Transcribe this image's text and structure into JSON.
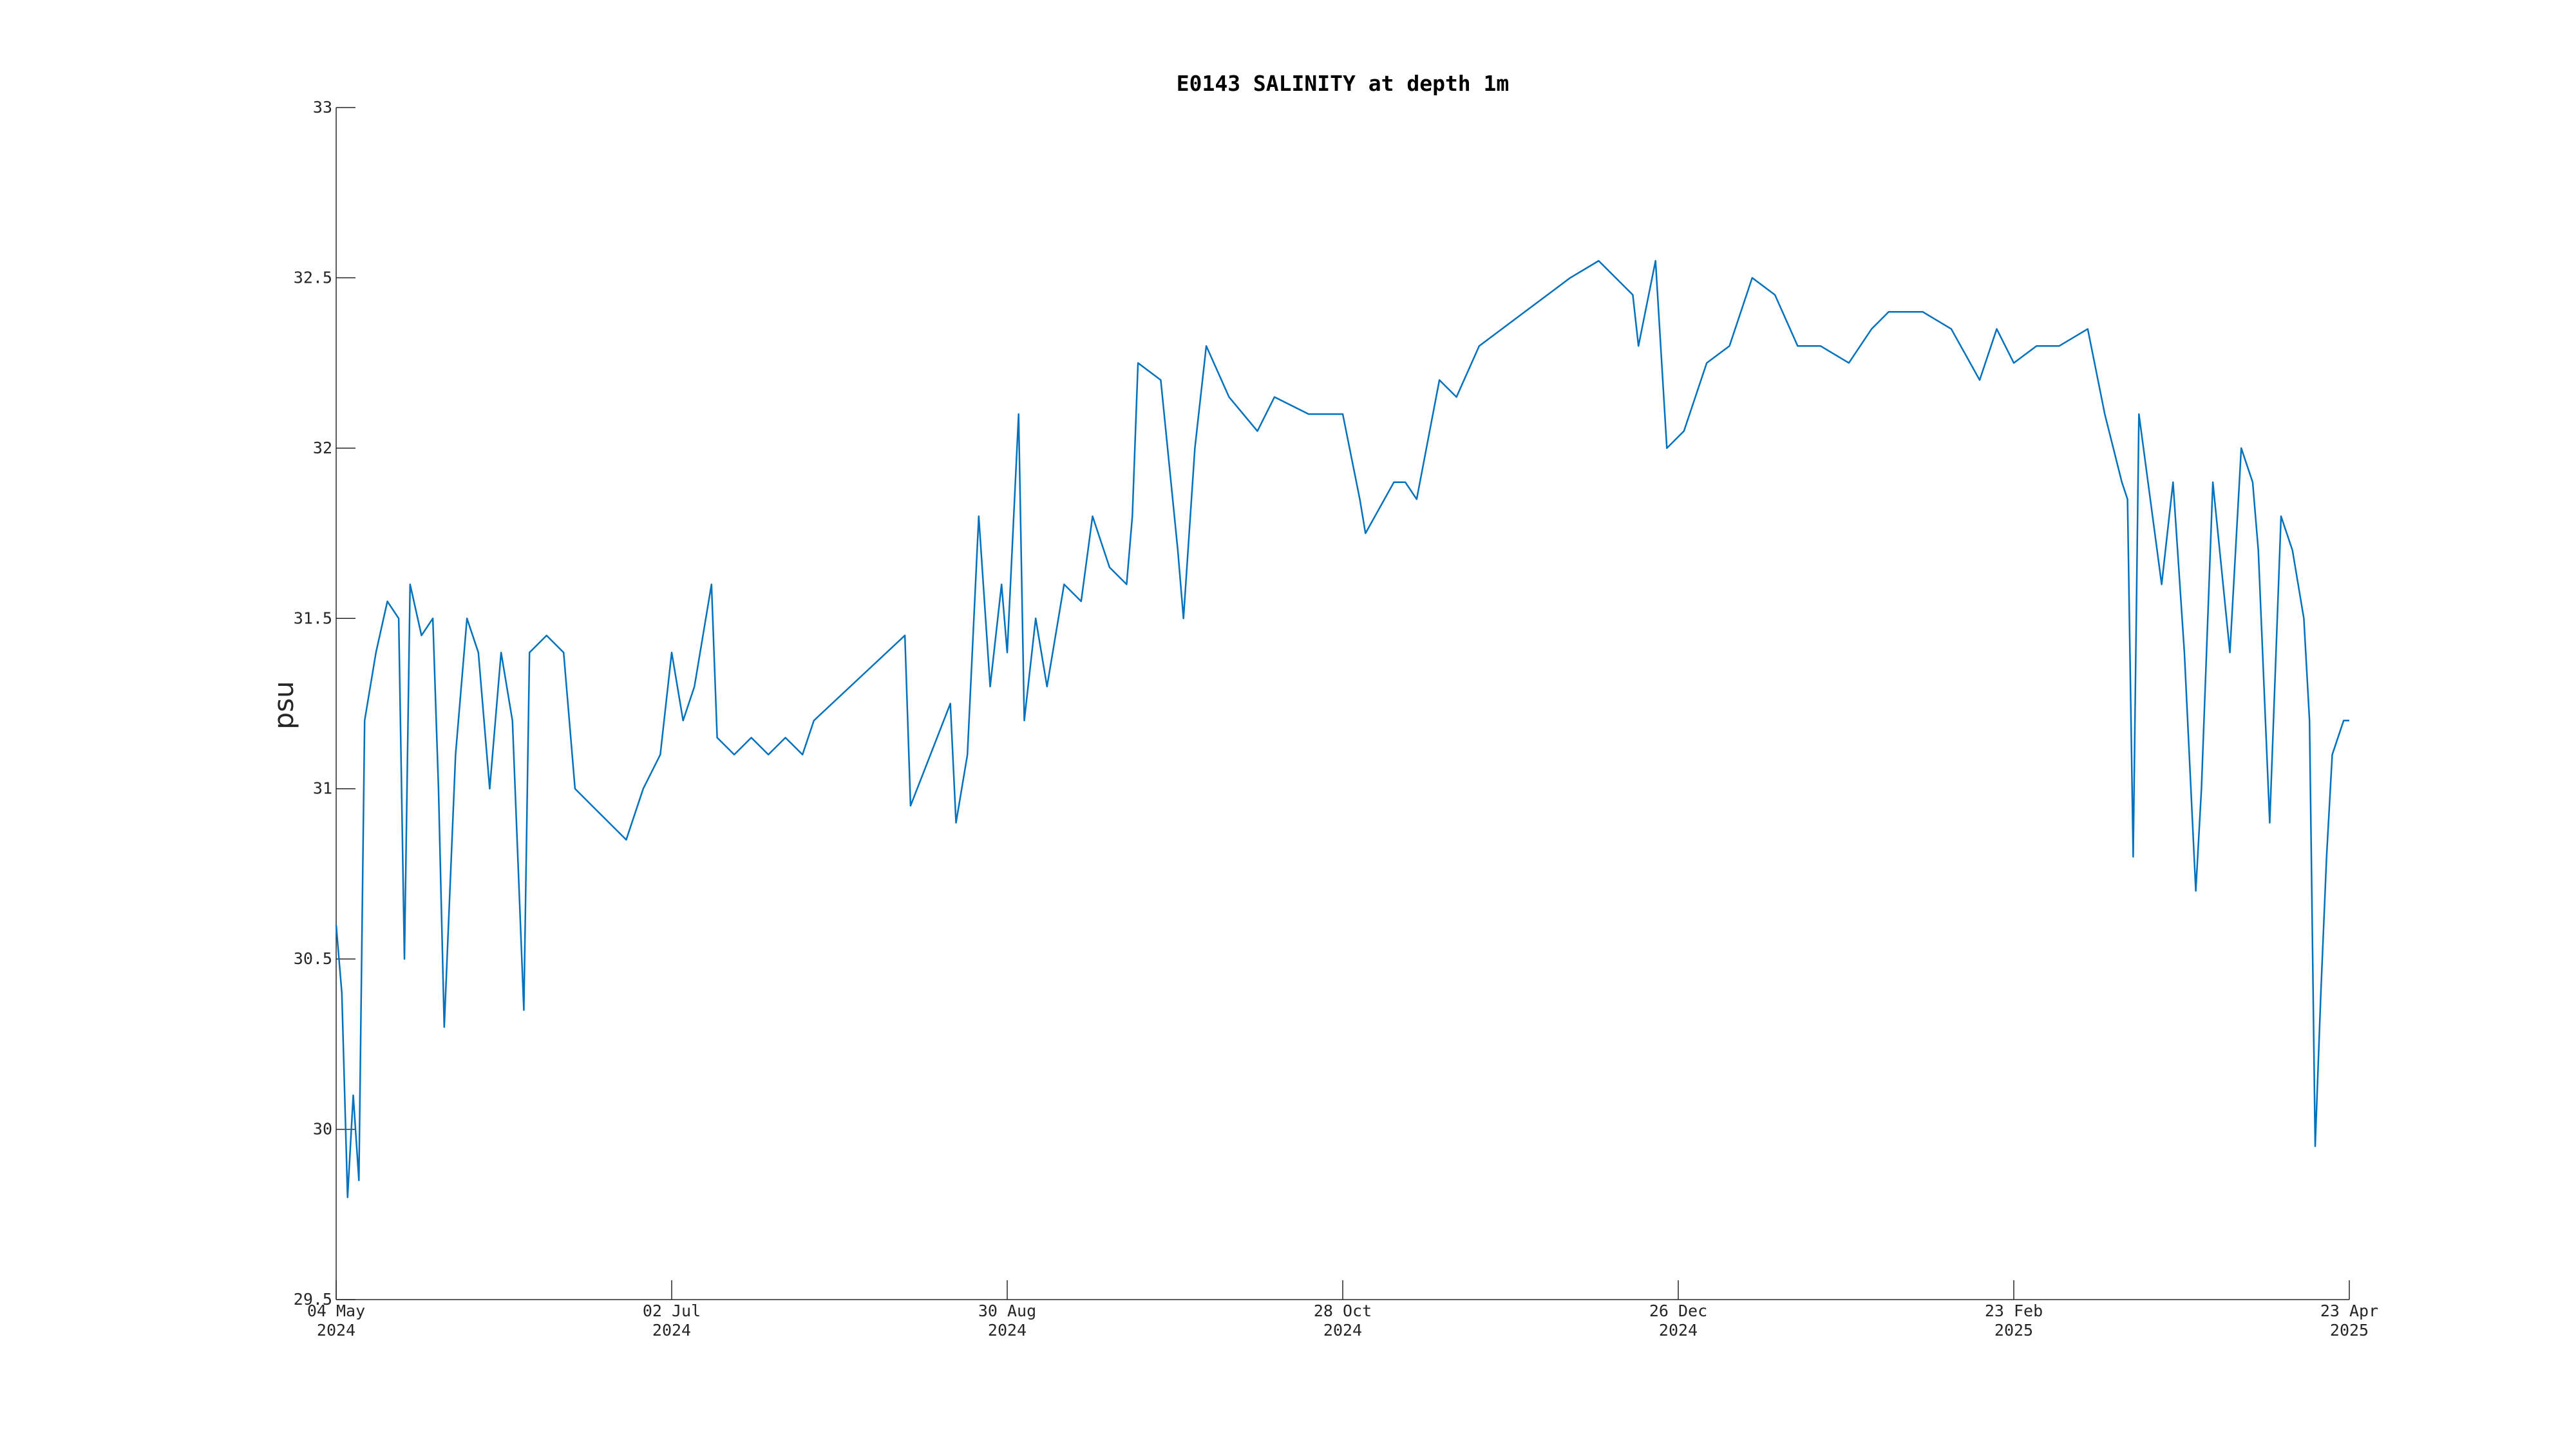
{
  "chart_data": {
    "type": "line",
    "title": "E0143 SALINITY at depth 1m",
    "y_label": "psu",
    "color": "#0072bd",
    "x": [
      "2024-05-04",
      "2024-05-05",
      "2024-05-06",
      "2024-05-07",
      "2024-05-08",
      "2024-05-09",
      "2024-05-11",
      "2024-05-13",
      "2024-05-15",
      "2024-05-16",
      "2024-05-17",
      "2024-05-19",
      "2024-05-21",
      "2024-05-22",
      "2024-05-23",
      "2024-05-25",
      "2024-05-27",
      "2024-05-29",
      "2024-05-31",
      "2024-06-02",
      "2024-06-04",
      "2024-06-06",
      "2024-06-07",
      "2024-06-10",
      "2024-06-13",
      "2024-06-15",
      "2024-06-18",
      "2024-06-21",
      "2024-06-24",
      "2024-06-27",
      "2024-06-30",
      "2024-07-02",
      "2024-07-04",
      "2024-07-06",
      "2024-07-09",
      "2024-07-10",
      "2024-07-13",
      "2024-07-16",
      "2024-07-19",
      "2024-07-22",
      "2024-07-25",
      "2024-07-27",
      "2024-08-12",
      "2024-08-13",
      "2024-08-20",
      "2024-08-21",
      "2024-08-23",
      "2024-08-25",
      "2024-08-27",
      "2024-08-29",
      "2024-08-30",
      "2024-09-01",
      "2024-09-02",
      "2024-09-04",
      "2024-09-06",
      "2024-09-09",
      "2024-09-12",
      "2024-09-14",
      "2024-09-17",
      "2024-09-20",
      "2024-09-21",
      "2024-09-22",
      "2024-09-26",
      "2024-09-29",
      "2024-09-30",
      "2024-10-02",
      "2024-10-04",
      "2024-10-08",
      "2024-10-13",
      "2024-10-16",
      "2024-10-22",
      "2024-10-28",
      "2024-10-31",
      "2024-11-01",
      "2024-11-06",
      "2024-11-08",
      "2024-11-10",
      "2024-11-14",
      "2024-11-17",
      "2024-11-21",
      "2024-11-29",
      "2024-12-07",
      "2024-12-12",
      "2024-12-18",
      "2024-12-19",
      "2024-12-22",
      "2024-12-24",
      "2024-12-27",
      "2024-12-31",
      "2025-01-04",
      "2025-01-08",
      "2025-01-12",
      "2025-01-16",
      "2025-01-20",
      "2025-01-25",
      "2025-01-29",
      "2025-02-01",
      "2025-02-07",
      "2025-02-12",
      "2025-02-17",
      "2025-02-20",
      "2025-02-23",
      "2025-02-27",
      "2025-03-03",
      "2025-03-08",
      "2025-03-11",
      "2025-03-14",
      "2025-03-15",
      "2025-03-16",
      "2025-03-17",
      "2025-03-21",
      "2025-03-23",
      "2025-03-25",
      "2025-03-27",
      "2025-03-28",
      "2025-03-30",
      "2025-04-02",
      "2025-04-04",
      "2025-04-06",
      "2025-04-07",
      "2025-04-09",
      "2025-04-11",
      "2025-04-13",
      "2025-04-15",
      "2025-04-16",
      "2025-04-17",
      "2025-04-18",
      "2025-04-19",
      "2025-04-20",
      "2025-04-22",
      "2025-04-23"
    ],
    "values": [
      30.6,
      30.4,
      29.8,
      30.1,
      29.85,
      31.2,
      31.4,
      31.55,
      31.5,
      30.5,
      31.6,
      31.45,
      31.5,
      31.0,
      30.3,
      31.1,
      31.5,
      31.4,
      31.0,
      31.4,
      31.2,
      30.35,
      31.4,
      31.45,
      31.4,
      31.0,
      30.95,
      30.9,
      30.85,
      31.0,
      31.1,
      31.4,
      31.2,
      31.3,
      31.6,
      31.15,
      31.1,
      31.15,
      31.1,
      31.15,
      31.1,
      31.2,
      31.45,
      30.95,
      31.25,
      30.9,
      31.1,
      31.8,
      31.3,
      31.6,
      31.4,
      32.1,
      31.2,
      31.5,
      31.3,
      31.6,
      31.55,
      31.8,
      31.65,
      31.6,
      31.8,
      32.25,
      32.2,
      31.7,
      31.5,
      32.0,
      32.3,
      32.15,
      32.05,
      32.15,
      32.1,
      32.1,
      31.85,
      31.75,
      31.9,
      31.9,
      31.85,
      32.2,
      32.15,
      32.3,
      32.4,
      32.5,
      32.55,
      32.45,
      32.3,
      32.55,
      32.0,
      32.05,
      32.25,
      32.3,
      32.5,
      32.45,
      32.3,
      32.3,
      32.25,
      32.35,
      32.4,
      32.4,
      32.35,
      32.2,
      32.35,
      32.25,
      32.3,
      32.3,
      32.35,
      32.1,
      31.9,
      31.85,
      30.8,
      32.1,
      31.6,
      31.9,
      31.4,
      30.7,
      31.0,
      31.9,
      31.4,
      32.0,
      31.9,
      31.7,
      30.9,
      31.8,
      31.7,
      31.5,
      31.2,
      29.95,
      30.4,
      30.8,
      31.1,
      31.2,
      31.2
    ],
    "xlim": [
      "2024-05-04",
      "2025-04-23"
    ],
    "xticks": [
      {
        "value": "2024-05-04",
        "label": "04 May 2024"
      },
      {
        "value": "2024-07-02",
        "label": "02 Jul 2024"
      },
      {
        "value": "2024-08-30",
        "label": "30 Aug 2024"
      },
      {
        "value": "2024-10-28",
        "label": "28 Oct 2024"
      },
      {
        "value": "2024-12-26",
        "label": "26 Dec 2024"
      },
      {
        "value": "2025-02-23",
        "label": "23 Feb 2025"
      },
      {
        "value": "2025-04-23",
        "label": "23 Apr 2025"
      }
    ],
    "ylim": [
      29.5,
      33
    ],
    "yticks": [
      29.5,
      30,
      30.5,
      31,
      31.5,
      32,
      32.5,
      33
    ],
    "grid": false
  }
}
